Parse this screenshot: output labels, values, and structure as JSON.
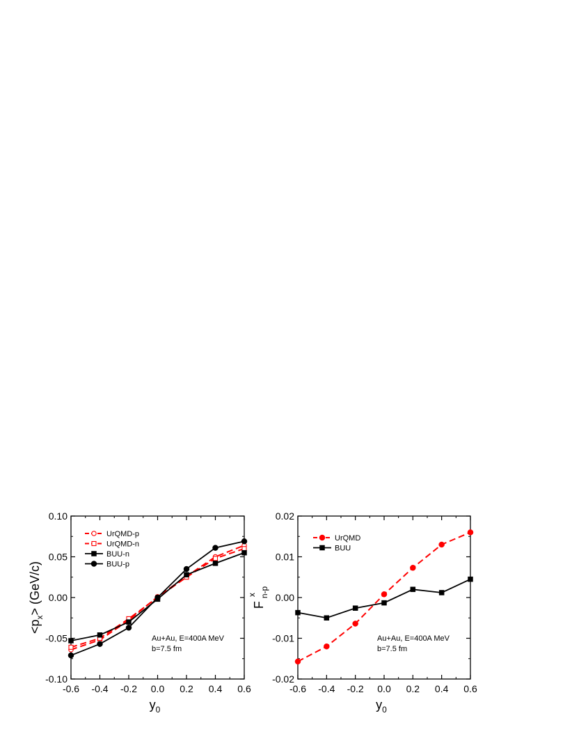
{
  "chart_data": [
    {
      "type": "line",
      "ylabel_main": "<p",
      "ylabel_sub": "x",
      "ylabel_rest": "> (GeV/c)",
      "xlabel_main": "y",
      "xlabel_sub": "0",
      "xlim": [
        -0.6,
        0.6
      ],
      "ylim": [
        -0.1,
        0.1
      ],
      "xticks": [
        "-0.6",
        "-0.4",
        "-0.2",
        "0.0",
        "0.2",
        "0.4",
        "0.6"
      ],
      "yticks": [
        "-0.10",
        "-0.05",
        "0.00",
        "0.05",
        "0.10"
      ],
      "annotation": [
        "Au+Au, E=400A MeV",
        "b=7.5 fm"
      ],
      "legend_position": "top-left",
      "x": [
        -0.6,
        -0.4,
        -0.2,
        0.0,
        0.2,
        0.4,
        0.6
      ],
      "series": [
        {
          "name": "UrQMD-p",
          "color": "#ff0000",
          "dash": true,
          "marker": "open-circle",
          "values": [
            -0.064,
            -0.052,
            -0.028,
            0.001,
            0.026,
            0.05,
            0.064
          ]
        },
        {
          "name": "UrQMD-n",
          "color": "#ff0000",
          "dash": true,
          "marker": "open-square",
          "values": [
            -0.061,
            -0.05,
            -0.026,
            0.0,
            0.025,
            0.048,
            0.06
          ]
        },
        {
          "name": "BUU-n",
          "color": "#000000",
          "dash": false,
          "marker": "filled-square",
          "values": [
            -0.053,
            -0.046,
            -0.03,
            -0.002,
            0.028,
            0.042,
            0.055
          ]
        },
        {
          "name": "BUU-p",
          "color": "#000000",
          "dash": false,
          "marker": "filled-circle",
          "values": [
            -0.071,
            -0.057,
            -0.037,
            0.0,
            0.035,
            0.061,
            0.069
          ]
        }
      ]
    },
    {
      "type": "line",
      "ylabel_main": "F",
      "ylabel_sub": "n-p",
      "ylabel_sup": "x",
      "xlabel_main": "y",
      "xlabel_sub": "0",
      "xlim": [
        -0.6,
        0.6
      ],
      "ylim": [
        -0.02,
        0.02
      ],
      "xticks": [
        "-0.6",
        "-0.4",
        "-0.2",
        "0.0",
        "0.2",
        "0.4",
        "0.6"
      ],
      "yticks": [
        "-0.02",
        "-0.01",
        "0.00",
        "0.01",
        "0.02"
      ],
      "annotation": [
        "Au+Au, E=400A MeV",
        "b=7.5 fm"
      ],
      "legend_position": "top-left",
      "x": [
        -0.6,
        -0.4,
        -0.2,
        0.0,
        0.2,
        0.4,
        0.6
      ],
      "series": [
        {
          "name": "UrQMD",
          "color": "#ff0000",
          "dash": true,
          "marker": "filled-circle",
          "values": [
            -0.0157,
            -0.012,
            -0.0064,
            0.0008,
            0.0073,
            0.013,
            0.016
          ]
        },
        {
          "name": "BUU",
          "color": "#000000",
          "dash": false,
          "marker": "filled-square",
          "values": [
            -0.0037,
            -0.005,
            -0.0026,
            -0.0013,
            0.002,
            0.0012,
            0.0045
          ]
        }
      ]
    }
  ]
}
